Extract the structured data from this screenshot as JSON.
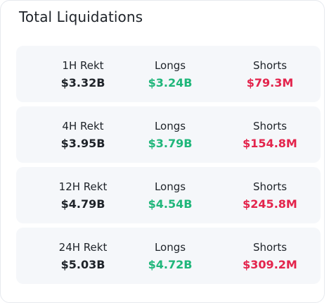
{
  "title": "Total Liquidations",
  "colors": {
    "longs": "#1fb67a",
    "shorts": "#e3244c",
    "row_bg": "#f5f7fa",
    "text": "#1e2329"
  },
  "rows": [
    {
      "period_label": "1H  Rekt",
      "total": "$3.32B",
      "longs_label": "Longs",
      "longs": "$3.24B",
      "shorts_label": "Shorts",
      "shorts": "$79.3M"
    },
    {
      "period_label": "4H Rekt",
      "total": "$3.95B",
      "longs_label": "Longs",
      "longs": "$3.79B",
      "shorts_label": "Shorts",
      "shorts": "$154.8M"
    },
    {
      "period_label": "12H Rekt",
      "total": "$4.79B",
      "longs_label": "Longs",
      "longs": "$4.54B",
      "shorts_label": "Shorts",
      "shorts": "$245.8M"
    },
    {
      "period_label": "24H Rekt",
      "total": "$5.03B",
      "longs_label": "Longs",
      "longs": "$4.72B",
      "shorts_label": "Shorts",
      "shorts": "$309.2M"
    }
  ]
}
